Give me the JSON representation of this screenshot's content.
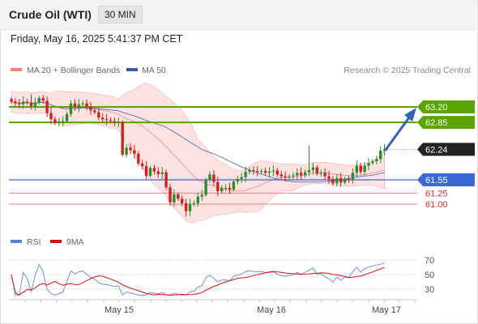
{
  "header": {
    "title": "Crude Oil (WTI)",
    "interval": "30 MIN",
    "datetime": "Friday, May 16, 2025 5:41:37 PM CET"
  },
  "legend": {
    "bollinger": "MA 20 + Bollinger Bands",
    "ma50": "MA 50",
    "credit": "Research © 2025 Trading Central",
    "rsi": "RSI",
    "rsi_ma": "9MA"
  },
  "colors": {
    "green": "#5aa300",
    "blue": "#3a68d8",
    "red": "#f08080",
    "dark": "#222222",
    "bull": "#2e8b2e",
    "bear": "#cc2222",
    "band_fill": "#fcd8d8",
    "ma50": "#4a63a8"
  },
  "chart_data": {
    "type": "candlestick",
    "y_range": [
      60.72,
      63.52
    ],
    "x_labels": [
      "May 15",
      "May 16",
      "May 17"
    ],
    "price_levels": [
      {
        "label": "63.20",
        "value": 63.2,
        "kind": "resistance"
      },
      {
        "label": "62.85",
        "value": 62.85,
        "kind": "resistance"
      },
      {
        "label": "62.24",
        "value": 62.24,
        "kind": "current"
      },
      {
        "label": "61.55",
        "value": 61.55,
        "kind": "pivot"
      },
      {
        "label": "61.25",
        "value": 61.25,
        "kind": "support"
      },
      {
        "label": "61.00",
        "value": 61.0,
        "kind": "support"
      }
    ],
    "close": [
      63.32,
      63.28,
      63.26,
      63.32,
      63.3,
      63.22,
      63.3,
      63.4,
      63.34,
      63.06,
      62.92,
      62.84,
      62.86,
      62.88,
      63.04,
      63.28,
      63.2,
      63.26,
      63.28,
      63.2,
      63.12,
      63.08,
      62.96,
      62.92,
      62.9,
      62.88,
      62.84,
      62.85,
      62.12,
      62.28,
      62.22,
      62.14,
      61.92,
      61.86,
      61.64,
      61.82,
      61.74,
      61.68,
      61.72,
      61.38,
      61.04,
      61.22,
      61.12,
      61.02,
      60.84,
      61.0,
      61.02,
      61.17,
      61.21,
      61.55,
      61.67,
      61.5,
      61.29,
      61.37,
      61.37,
      61.33,
      61.51,
      61.57,
      61.61,
      61.73,
      61.77,
      61.75,
      61.73,
      61.75,
      61.71,
      61.74,
      61.76,
      61.67,
      61.63,
      61.61,
      61.63,
      61.65,
      61.71,
      61.65,
      61.72,
      61.77,
      61.83,
      61.69,
      61.71,
      61.63,
      61.57,
      61.47,
      61.59,
      61.49,
      61.57,
      61.55,
      61.71,
      61.87,
      61.73,
      61.87,
      61.93,
      61.97,
      62.02,
      62.21,
      62.24
    ],
    "rsi": {
      "range": [
        20,
        80
      ],
      "levels": [
        70,
        50,
        30
      ]
    }
  }
}
